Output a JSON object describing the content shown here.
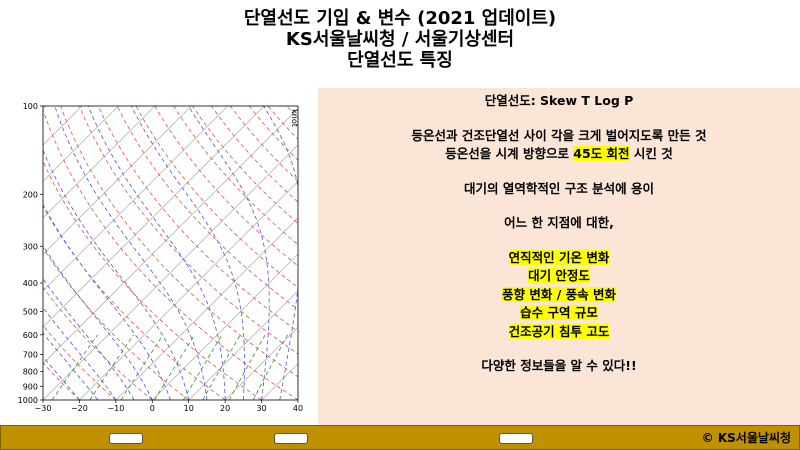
{
  "header": {
    "title_lines": [
      "단열선도 기입 & 변수 (2021 업데이트)",
      "KS서울날씨청 / 서울기상센터",
      "단열선도 특징"
    ]
  },
  "chart_data": {
    "type": "skewt",
    "xlim": [
      -30,
      40
    ],
    "xticks": [
      {
        "value": -30,
        "label": "−30"
      },
      {
        "value": -20,
        "label": "−20"
      },
      {
        "value": -10,
        "label": "−10"
      },
      0,
      10,
      20,
      30,
      40
    ],
    "ylim": [
      1000,
      100
    ],
    "yticks": [
      100,
      200,
      300,
      400,
      500,
      600,
      700,
      800,
      900,
      1000
    ],
    "log_y": true,
    "wind_unit_label": "knot"
  },
  "panel": {
    "paragraphs": [
      [
        [
          {
            "text": "단열선도: Skew T Log P"
          }
        ]
      ],
      [
        [
          {
            "text": "등온선과 건조단열선 사이 각을 크게 벌어지도록 만든 것"
          }
        ],
        [
          {
            "text": "등온선을 시계 방향으로 "
          },
          {
            "text": "45도 회전",
            "highlight": true
          },
          {
            "text": " 시킨 것"
          }
        ]
      ],
      [
        [
          {
            "text": "대기의 열역학적인 구조 분석에 용이"
          }
        ]
      ],
      [
        [
          {
            "text": "어느 한 지점에 대한,"
          }
        ]
      ],
      [
        [
          {
            "text": "연직적인 기온 변화",
            "highlight": true
          }
        ],
        [
          {
            "text": "대기 안정도",
            "highlight": true
          }
        ],
        [
          {
            "text": "풍향 변화 / 풍속 변화",
            "highlight": true
          }
        ],
        [
          {
            "text": "습수 구역 규모",
            "highlight": true
          }
        ],
        [
          {
            "text": "건조공기 침투 고도",
            "highlight": true
          }
        ]
      ],
      [
        [
          {
            "text": "다양한 정보들을 알 수 있다!!"
          }
        ]
      ]
    ]
  },
  "footer": {
    "copyright": "© KS서울날씨청"
  }
}
